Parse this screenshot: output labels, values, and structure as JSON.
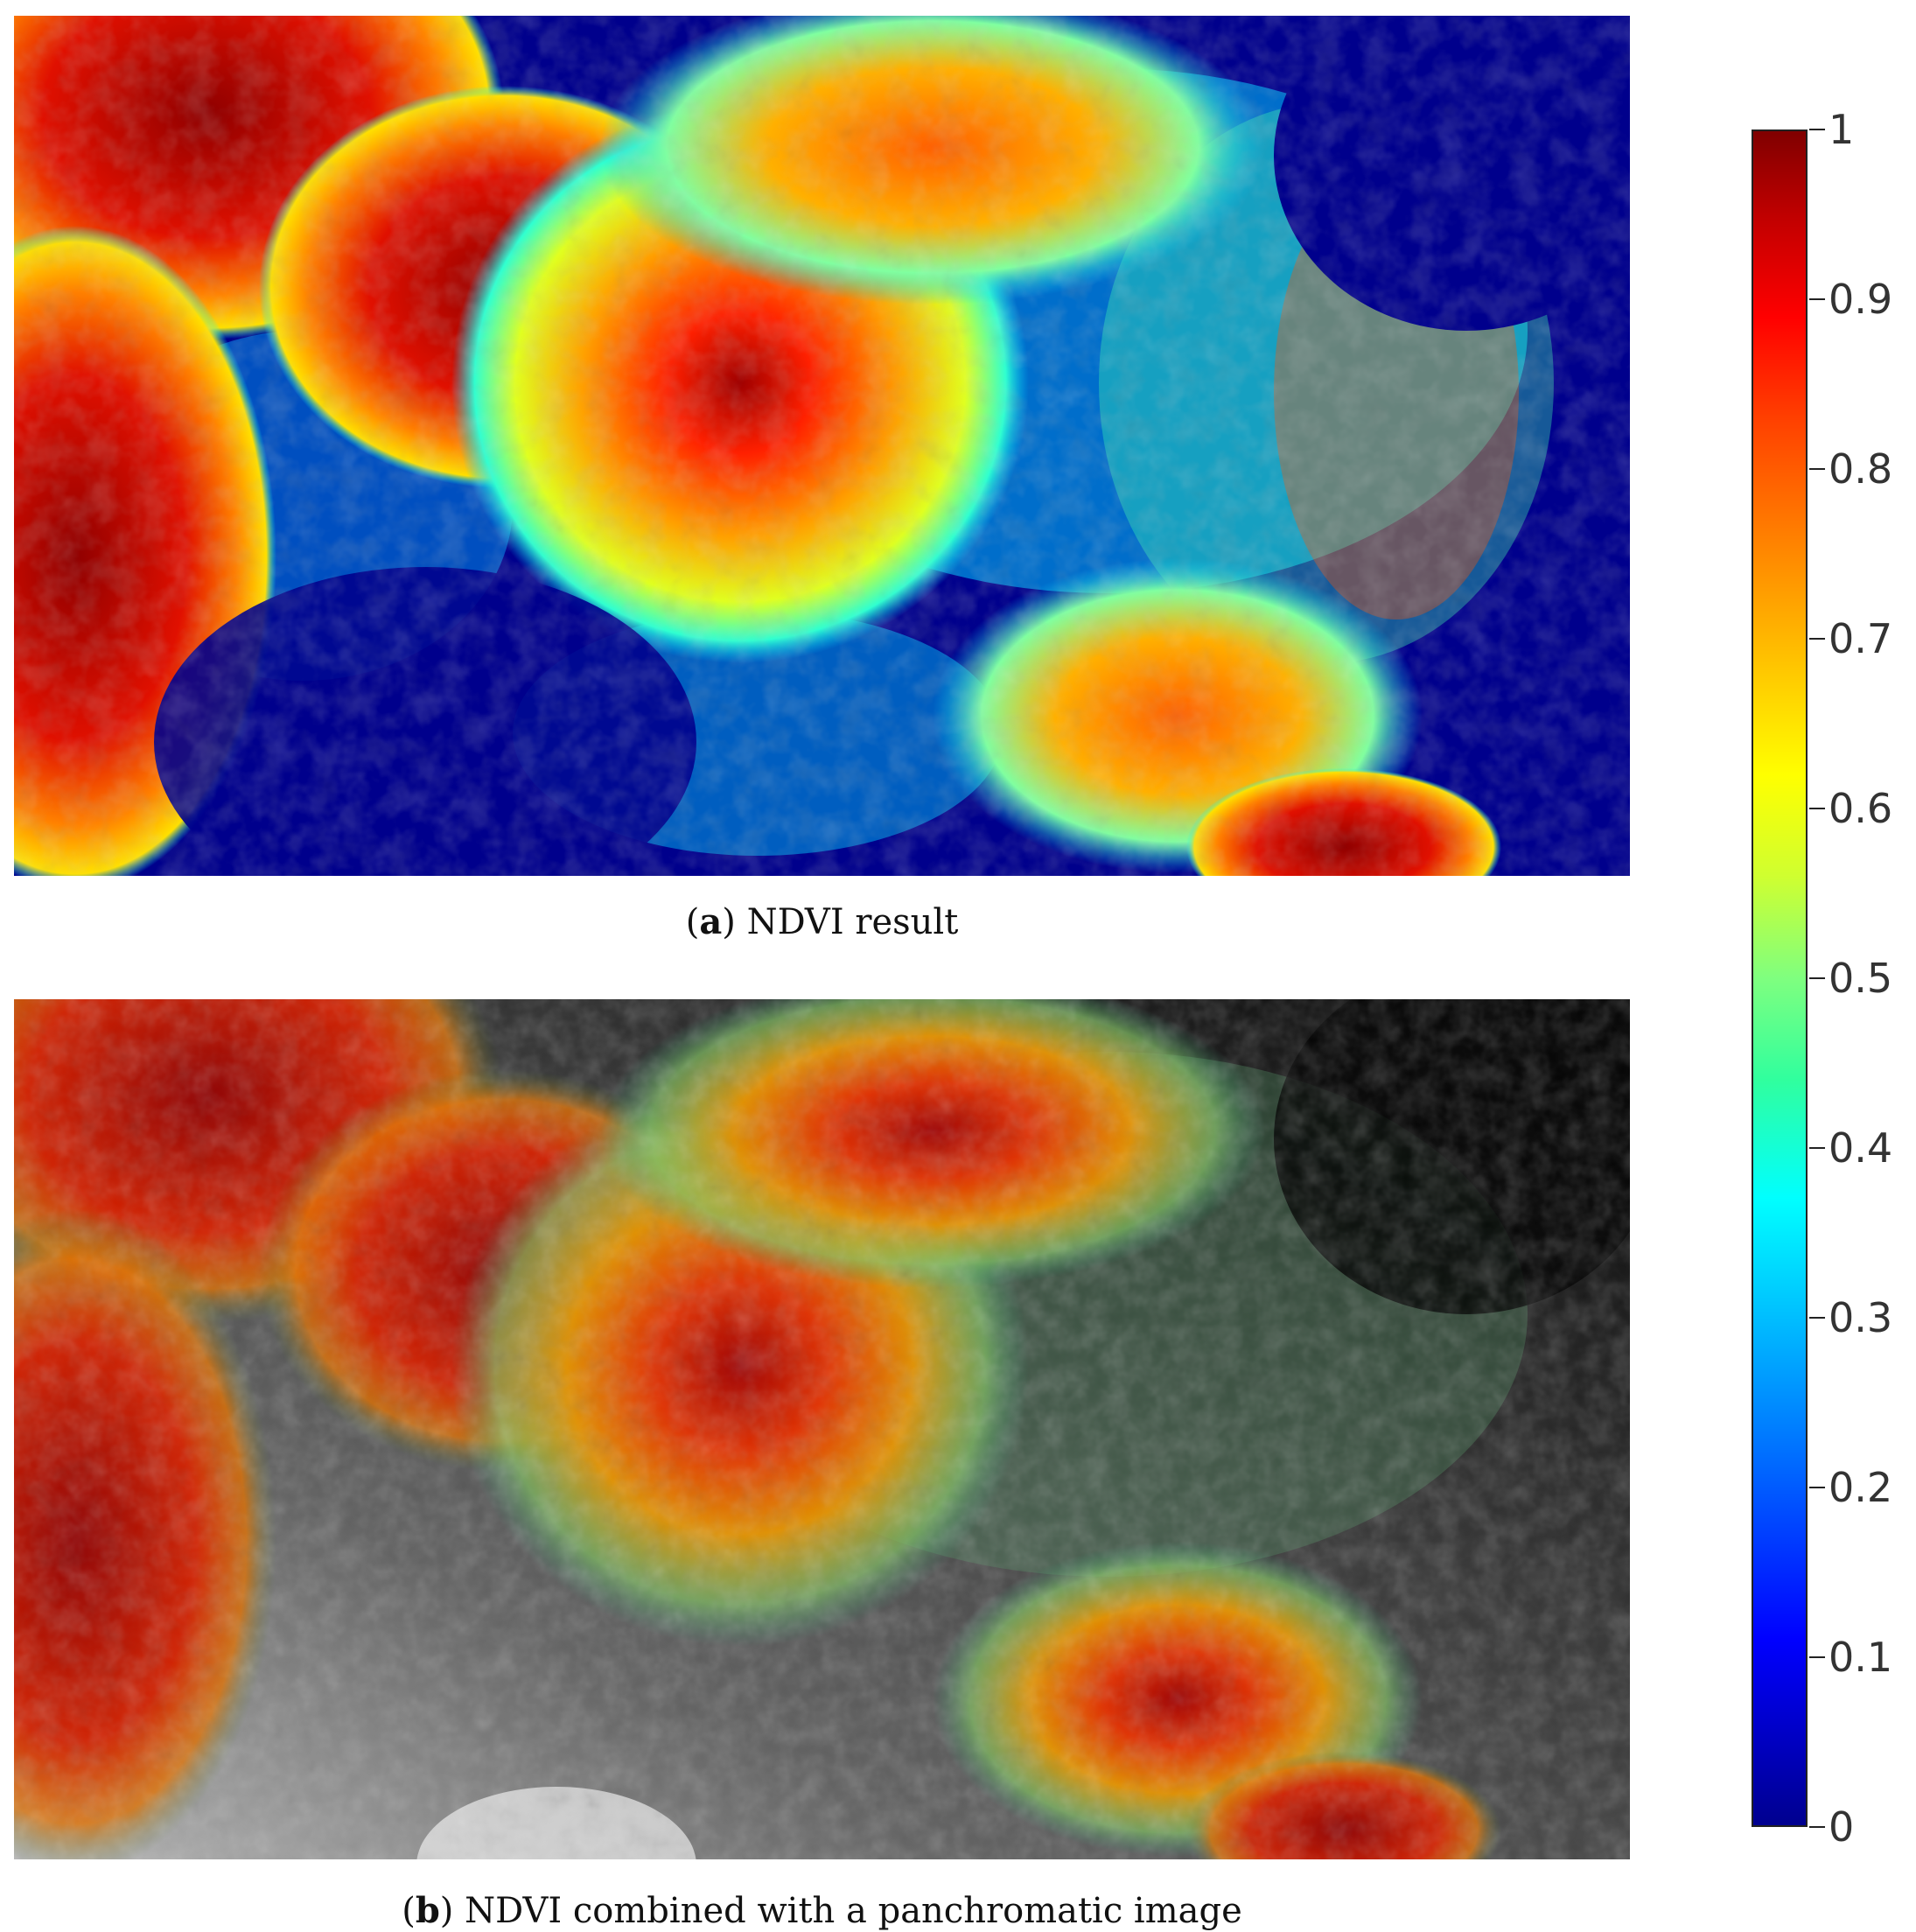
{
  "panels": [
    {
      "id": "a",
      "caption_letter": "a",
      "caption_text": "NDVI result"
    },
    {
      "id": "b",
      "caption_letter": "b",
      "caption_text": "NDVI combined with a panchromatic image"
    }
  ],
  "colorbar": {
    "min": 0,
    "max": 1,
    "ticks": [
      "0",
      "0.1",
      "0.2",
      "0.3",
      "0.4",
      "0.5",
      "0.6",
      "0.7",
      "0.8",
      "0.9",
      "1"
    ],
    "colormap": "jet",
    "colors": {
      "low": "#00008f",
      "mid": "#7fff7f",
      "high": "#800000"
    }
  }
}
